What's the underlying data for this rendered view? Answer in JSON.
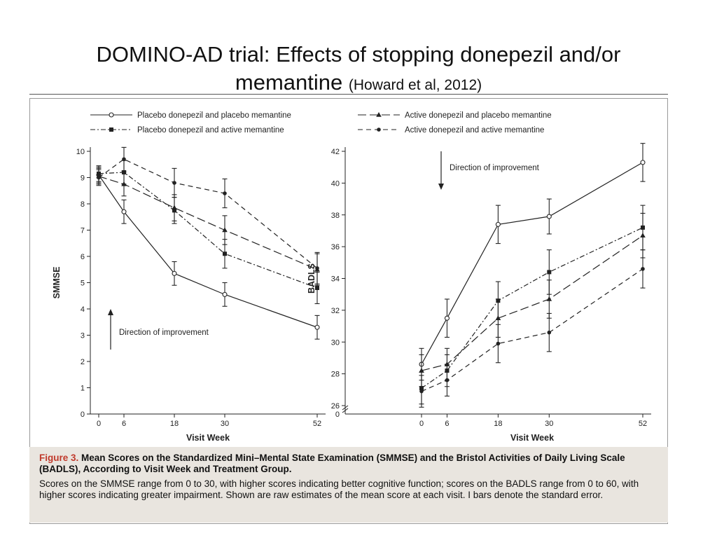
{
  "slide": {
    "title_line1": "DOMINO-AD trial: Effects of stopping donepezil and/or",
    "title_line2": "memantine",
    "citation": "(Howard et al, 2012)"
  },
  "legend": [
    {
      "label": "Placebo donepezil and placebo memantine",
      "marker": "open-circle",
      "dash": "solid"
    },
    {
      "label": "Active donepezil and placebo memantine",
      "marker": "triangle",
      "dash": "long-dash"
    },
    {
      "label": "Placebo donepezil and active memantine",
      "marker": "square",
      "dash": "dash-dot"
    },
    {
      "label": "Active donepezil and active memantine",
      "marker": "dot",
      "dash": "dash"
    }
  ],
  "annotations": {
    "left": "Direction of improvement",
    "right": "Direction of improvement"
  },
  "chart_data": [
    {
      "type": "line",
      "title": "",
      "xlabel": "Visit Week",
      "ylabel": "SMMSE",
      "x": [
        0,
        6,
        18,
        30,
        52
      ],
      "xticks": [
        "0",
        "6",
        "18",
        "30",
        "52"
      ],
      "ylim": [
        0,
        10
      ],
      "yticks": [
        "0",
        "1",
        "2",
        "3",
        "4",
        "5",
        "6",
        "7",
        "8",
        "9",
        "10"
      ],
      "series": [
        {
          "name": "Placebo donepezil and placebo memantine",
          "values": [
            9.1,
            7.7,
            5.35,
            4.55,
            3.3
          ],
          "errors": [
            0.3,
            0.45,
            0.45,
            0.45,
            0.45
          ]
        },
        {
          "name": "Active donepezil and placebo memantine",
          "values": [
            9.05,
            8.75,
            7.85,
            7.0,
            5.5
          ],
          "errors": [
            0.3,
            0.45,
            0.5,
            0.55,
            0.6
          ]
        },
        {
          "name": "Placebo donepezil and active memantine",
          "values": [
            9.15,
            9.2,
            7.75,
            6.1,
            4.8
          ],
          "errors": [
            0.3,
            0.45,
            0.5,
            0.55,
            0.6
          ]
        },
        {
          "name": "Active donepezil and active memantine",
          "values": [
            9.0,
            9.7,
            8.8,
            8.4,
            5.55
          ],
          "errors": [
            0.3,
            0.45,
            0.55,
            0.55,
            0.6
          ]
        }
      ]
    },
    {
      "type": "line",
      "title": "",
      "xlabel": "Visit Week",
      "ylabel": "BADLS",
      "x": [
        0,
        6,
        18,
        30,
        52
      ],
      "xticks": [
        "0",
        "6",
        "18",
        "30",
        "52"
      ],
      "ylim": [
        26,
        42
      ],
      "yticks": [
        "26",
        "28",
        "30",
        "32",
        "34",
        "36",
        "38",
        "40",
        "42"
      ],
      "y_axis_break": "0",
      "series": [
        {
          "name": "Placebo donepezil and placebo memantine",
          "values": [
            28.6,
            31.5,
            37.4,
            37.9,
            41.3
          ],
          "errors": [
            1.0,
            1.2,
            1.2,
            1.1,
            1.2
          ]
        },
        {
          "name": "Active donepezil and placebo memantine",
          "values": [
            28.2,
            28.6,
            31.5,
            32.7,
            36.7
          ],
          "errors": [
            1.0,
            1.0,
            1.2,
            1.2,
            1.4
          ]
        },
        {
          "name": "Placebo donepezil and active memantine",
          "values": [
            27.1,
            28.2,
            32.6,
            34.4,
            37.2
          ],
          "errors": [
            1.0,
            1.0,
            1.2,
            1.4,
            1.4
          ]
        },
        {
          "name": "Active donepezil and active memantine",
          "values": [
            26.9,
            27.6,
            29.9,
            30.6,
            34.6
          ],
          "errors": [
            1.0,
            1.0,
            1.2,
            1.2,
            1.2
          ]
        }
      ]
    }
  ],
  "caption": {
    "figure_label": "Figure 3.",
    "figure_title": "Mean Scores on the Standardized Mini–Mental State Examination (SMMSE) and the Bristol Activities of Daily Living Scale (BADLS), According to Visit Week and Treatment Group.",
    "body": "Scores on the SMMSE range from 0 to 30, with higher scores indicating better cognitive function; scores on the BADLS range from 0 to 60, with higher scores indicating greater impairment. Shown are raw estimates of the mean score at each visit. I bars denote the standard error."
  }
}
